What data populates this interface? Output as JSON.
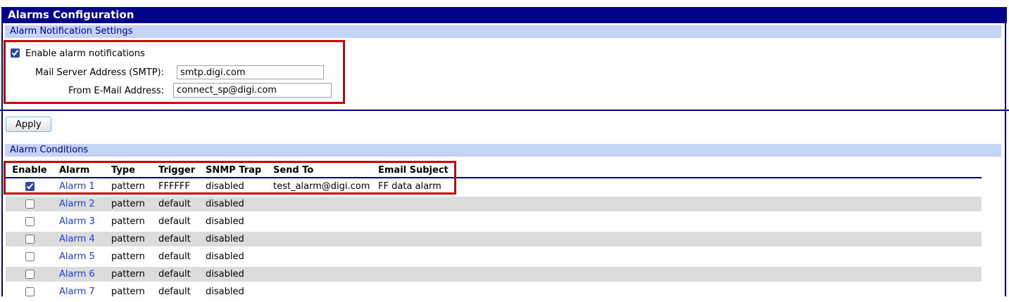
{
  "page": {
    "title": "Alarms Configuration"
  },
  "notification_settings": {
    "section_title": "Alarm Notification Settings",
    "enable_label": "Enable alarm notifications",
    "enable_checked": true,
    "smtp_label": "Mail Server Address (SMTP):",
    "smtp_value": "smtp.digi.com",
    "from_label": "From E-Mail Address:",
    "from_value": "connect_sp@digi.com",
    "apply_label": "Apply"
  },
  "conditions": {
    "section_title": "Alarm Conditions",
    "columns": {
      "enable": "Enable",
      "alarm": "Alarm",
      "type": "Type",
      "trigger": "Trigger",
      "snmp_trap": "SNMP Trap",
      "send_to": "Send To",
      "email_subject": "Email Subject"
    },
    "rows": [
      {
        "enabled": true,
        "alarm": "Alarm 1",
        "type": "pattern",
        "trigger": "FFFFFF",
        "snmp_trap": "disabled",
        "send_to": "test_alarm@digi.com",
        "email_subject": "FF data alarm"
      },
      {
        "enabled": false,
        "alarm": "Alarm 2",
        "type": "pattern",
        "trigger": "default",
        "snmp_trap": "disabled",
        "send_to": "",
        "email_subject": ""
      },
      {
        "enabled": false,
        "alarm": "Alarm 3",
        "type": "pattern",
        "trigger": "default",
        "snmp_trap": "disabled",
        "send_to": "",
        "email_subject": ""
      },
      {
        "enabled": false,
        "alarm": "Alarm 4",
        "type": "pattern",
        "trigger": "default",
        "snmp_trap": "disabled",
        "send_to": "",
        "email_subject": ""
      },
      {
        "enabled": false,
        "alarm": "Alarm 5",
        "type": "pattern",
        "trigger": "default",
        "snmp_trap": "disabled",
        "send_to": "",
        "email_subject": ""
      },
      {
        "enabled": false,
        "alarm": "Alarm 6",
        "type": "pattern",
        "trigger": "default",
        "snmp_trap": "disabled",
        "send_to": "",
        "email_subject": ""
      },
      {
        "enabled": false,
        "alarm": "Alarm 7",
        "type": "pattern",
        "trigger": "default",
        "snmp_trap": "disabled",
        "send_to": "",
        "email_subject": ""
      }
    ]
  },
  "colors": {
    "title_bar": "#02028A",
    "section_header_bg": "#C5D3F6",
    "section_header_text": "#00008B",
    "row_stripe": "#DCDCDC",
    "link": "#1F3FCC",
    "annotation_red": "#CE0000",
    "divider": "#00008B"
  }
}
